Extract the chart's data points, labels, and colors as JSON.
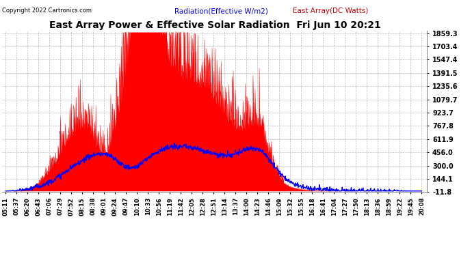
{
  "title": "East Array Power & Effective Solar Radiation  Fri Jun 10 20:21",
  "copyright": "Copyright 2022 Cartronics.com",
  "legend_radiation": "Radiation(Effective W/m2)",
  "legend_east": "East Array(DC Watts)",
  "yticks": [
    1859.3,
    1703.4,
    1547.4,
    1391.5,
    1235.6,
    1079.7,
    923.7,
    767.8,
    611.9,
    456.0,
    300.0,
    144.1,
    -11.8
  ],
  "ymin": -11.8,
  "ymax": 1859.3,
  "xtick_labels": [
    "05:11",
    "05:37",
    "06:20",
    "06:43",
    "07:06",
    "07:29",
    "07:52",
    "08:15",
    "08:38",
    "09:01",
    "09:24",
    "09:47",
    "10:10",
    "10:33",
    "10:56",
    "11:19",
    "11:42",
    "12:05",
    "12:28",
    "12:51",
    "13:14",
    "13:37",
    "14:00",
    "14:23",
    "14:46",
    "15:09",
    "15:32",
    "15:55",
    "16:18",
    "16:41",
    "17:04",
    "17:27",
    "17:50",
    "18:13",
    "18:36",
    "18:59",
    "19:22",
    "19:45",
    "20:08"
  ],
  "bg_color": "#ffffff",
  "grid_color": "#aaaaaa",
  "fill_color": "#ff0000",
  "line_color_blue": "#0000ff",
  "title_color": "#000000",
  "copyright_color": "#000000",
  "legend_radiation_color": "#0000ff",
  "legend_east_color": "#cc0000"
}
